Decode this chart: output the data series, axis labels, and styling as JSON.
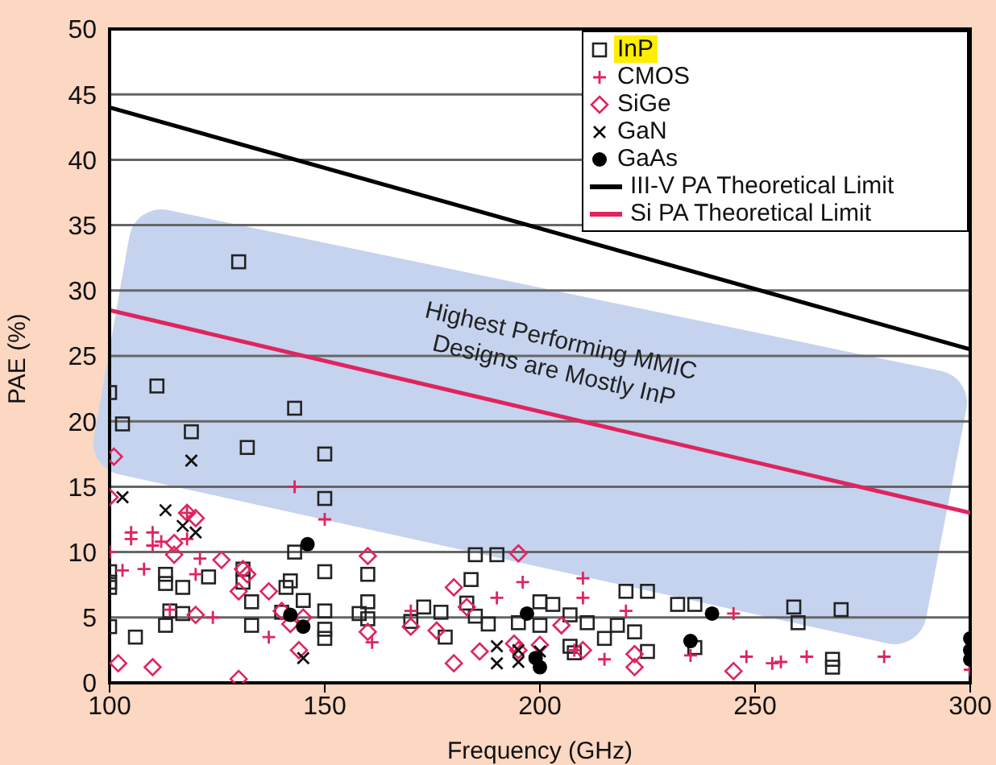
{
  "chart_data": {
    "type": "scatter",
    "xlabel": "Frequency (GHz)",
    "ylabel": "PAE (%)",
    "xlim": [
      100,
      300
    ],
    "xticks": [
      100,
      150,
      200,
      250,
      300
    ],
    "ylim": [
      0,
      50
    ],
    "yticks": [
      0,
      5,
      10,
      15,
      20,
      25,
      30,
      35,
      40,
      45,
      50
    ],
    "grid": "y",
    "legend": "top right",
    "annotations": [
      "Highest Performing MMIC Designs are Mostly InP"
    ],
    "series": [
      {
        "name": "InP",
        "color": "#222222",
        "marker": "square",
        "x": [
          100,
          103,
          111,
          119,
          130,
          132,
          143,
          150,
          150,
          100,
          100,
          100,
          100,
          106,
          113,
          113,
          114,
          113,
          117,
          117,
          131,
          131,
          133,
          133,
          143,
          145,
          141,
          142,
          158,
          150,
          150,
          150,
          150,
          160,
          160,
          160,
          170,
          173,
          177,
          185,
          184,
          190,
          178,
          183,
          185,
          188,
          195,
          200,
          200,
          203,
          207,
          211,
          215,
          207,
          208,
          218,
          222,
          225,
          220,
          225,
          232,
          236,
          236,
          260,
          259,
          270,
          268,
          268,
          123,
          140
        ],
        "values": [
          22.2,
          19.8,
          22.7,
          19.2,
          32.2,
          18,
          21,
          17.5,
          14.1,
          8.5,
          7.7,
          7.3,
          4.3,
          3.5,
          8.3,
          7.6,
          5.5,
          4.4,
          7.3,
          5.3,
          8.7,
          7.7,
          6.2,
          4.4,
          10,
          6.3,
          7.3,
          7.8,
          5.3,
          8.5,
          5.5,
          4.1,
          3.4,
          8.3,
          6.2,
          4.9,
          4.7,
          5.8,
          5.4,
          9.8,
          7.9,
          9.8,
          3.5,
          6.1,
          5.1,
          4.5,
          4.6,
          4.4,
          6.2,
          6,
          5.2,
          4.6,
          3.4,
          2.8,
          2.3,
          4.4,
          3.9,
          2.4,
          7,
          7,
          6,
          6,
          2.7,
          4.6,
          5.8,
          5.6,
          1.8,
          1.2,
          8.1,
          5.4
        ]
      },
      {
        "name": "CMOS",
        "color": "#e0245e",
        "marker": "plus",
        "x": [
          100,
          103,
          105,
          105,
          110,
          112,
          118,
          143,
          150,
          110,
          121,
          108,
          120,
          161,
          170,
          190,
          196,
          210,
          210,
          220,
          235,
          245,
          248,
          254,
          256,
          280,
          300,
          262,
          215,
          208,
          118,
          124,
          137,
          114
        ],
        "values": [
          10,
          8.6,
          11,
          11.5,
          10.5,
          10.8,
          13,
          15,
          12.5,
          11.5,
          9.5,
          8.7,
          8.3,
          3.1,
          5.5,
          6.5,
          7.7,
          8,
          6.5,
          5.5,
          2.1,
          5.3,
          2,
          1.5,
          1.6,
          2,
          1,
          2,
          1.8,
          2.5,
          11,
          5,
          3.5,
          5.6
        ]
      },
      {
        "name": "SiGe",
        "color": "#e0245e",
        "marker": "diamond",
        "x": [
          101,
          100,
          102,
          110,
          115,
          115,
          118,
          120,
          126,
          130,
          120,
          130,
          131,
          132,
          137,
          140,
          142,
          144,
          145,
          160,
          160,
          170,
          176,
          183,
          186,
          180,
          195,
          194,
          195,
          205,
          210,
          180,
          222,
          222,
          245,
          200
        ],
        "values": [
          17.3,
          14.2,
          1.5,
          1.2,
          9.8,
          10.7,
          13,
          12.6,
          9.4,
          7,
          5.2,
          0.3,
          8.7,
          8.3,
          7,
          5.5,
          4.5,
          2.5,
          5,
          9.7,
          3.9,
          4.3,
          4,
          5.8,
          2.4,
          7.3,
          9.9,
          3,
          2.5,
          4.4,
          2.5,
          1.5,
          2.2,
          1.2,
          0.9,
          2.9
        ]
      },
      {
        "name": "GaN",
        "color": "#111111",
        "marker": "cross",
        "x": [
          103,
          113,
          119,
          117,
          120,
          145,
          190,
          195,
          200,
          190,
          195
        ],
        "values": [
          14.2,
          13.2,
          17,
          12,
          11.5,
          1.9,
          2.8,
          2.5,
          2.4,
          1.5,
          1.6
        ]
      },
      {
        "name": "GaAs",
        "color": "#000000",
        "marker": "circle",
        "x": [
          146,
          145,
          142,
          197,
          199,
          200,
          235,
          240,
          300,
          300,
          300
        ],
        "values": [
          10.6,
          4.3,
          5.2,
          5.3,
          1.9,
          1.2,
          3.2,
          5.3,
          3.4,
          2.5,
          1.8
        ]
      },
      {
        "name": "III-V PA Theoretical Limit",
        "type": "line",
        "color": "#000000",
        "x": [
          100,
          300
        ],
        "values": [
          44,
          25.5
        ]
      },
      {
        "name": "Si PA Theoretical Limit",
        "type": "line",
        "color": "#e0245e",
        "x": [
          100,
          300
        ],
        "values": [
          28.5,
          13
        ]
      }
    ]
  }
}
